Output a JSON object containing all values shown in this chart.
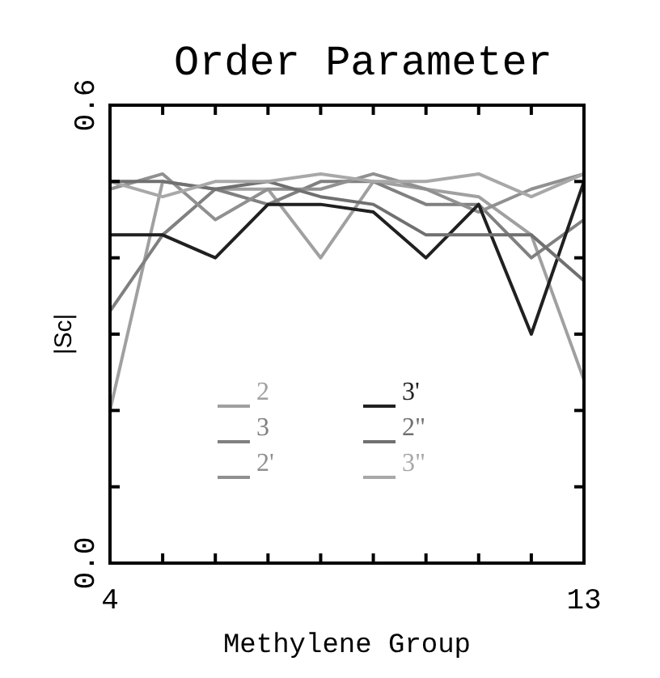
{
  "chart_data": {
    "type": "line",
    "title": "Order Parameter",
    "xlabel": "Methylene Group",
    "ylabel": "|Sc|",
    "x": [
      4,
      5,
      6,
      7,
      8,
      9,
      10,
      11,
      12,
      13
    ],
    "xlim": [
      4,
      13
    ],
    "xticks": [
      4,
      {
        "value": 5,
        "label": null
      },
      {
        "value": 6,
        "label": null
      },
      {
        "value": 7,
        "label": null
      },
      {
        "value": 8,
        "label": null
      },
      {
        "value": 9,
        "label": null
      },
      {
        "value": 10,
        "label": null
      },
      {
        "value": 11,
        "label": null
      },
      {
        "value": 12,
        "label": null
      },
      13
    ],
    "ylim": [
      0,
      0.6
    ],
    "yticks": [
      {
        "value": 0,
        "label": "0.0"
      },
      {
        "value": 0.1,
        "label": null
      },
      {
        "value": 0.2,
        "label": null
      },
      {
        "value": 0.3,
        "label": null
      },
      {
        "value": 0.4,
        "label": null
      },
      {
        "value": 0.5,
        "label": null
      },
      {
        "value": 0.6,
        "label": "0.6"
      }
    ],
    "legend": "center",
    "grid": false,
    "marker": "none",
    "line_style": "solid",
    "series": [
      {
        "name": "2",
        "color": "#a0a0a0",
        "values": [
          0.2,
          0.5,
          0.49,
          0.49,
          0.4,
          0.5,
          0.49,
          0.48,
          0.43,
          0.24
        ]
      },
      {
        "name": "3",
        "color": "#808080",
        "values": [
          0.33,
          0.43,
          0.49,
          0.47,
          0.5,
          0.5,
          0.47,
          0.47,
          0.4,
          0.45
        ]
      },
      {
        "name": "2'",
        "color": "#909090",
        "values": [
          0.49,
          0.51,
          0.45,
          0.49,
          0.49,
          0.51,
          0.49,
          0.46,
          0.49,
          0.51
        ]
      },
      {
        "name": "3'",
        "color": "#202020",
        "values": [
          0.43,
          0.43,
          0.4,
          0.47,
          0.47,
          0.46,
          0.4,
          0.47,
          0.3,
          0.5
        ]
      },
      {
        "name": "2\"",
        "color": "#707070",
        "values": [
          0.5,
          0.5,
          0.49,
          0.5,
          0.48,
          0.47,
          0.43,
          0.43,
          0.43,
          0.37
        ]
      },
      {
        "name": "3\"",
        "color": "#a8a8a8",
        "values": [
          0.5,
          0.48,
          0.5,
          0.5,
          0.51,
          0.5,
          0.5,
          0.51,
          0.48,
          0.51
        ]
      }
    ]
  }
}
